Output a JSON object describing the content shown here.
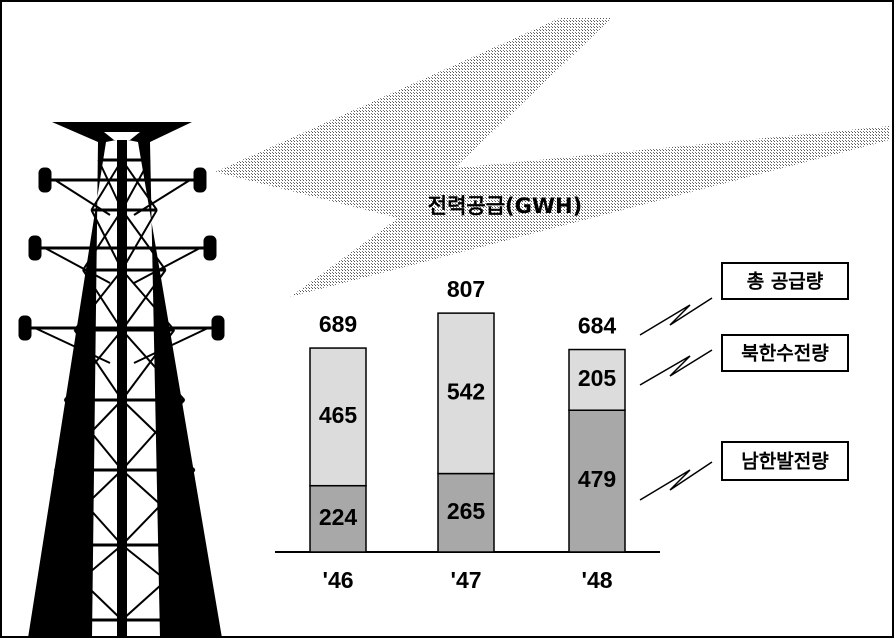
{
  "chart_data": {
    "type": "stacked_bar",
    "title": "전력공급(GWH)",
    "categories": [
      "'46",
      "'47",
      "'48"
    ],
    "series": [
      {
        "name": "남한발전량",
        "color": "#a8a8a8",
        "values": [
          224,
          265,
          479
        ]
      },
      {
        "name": "북한수전량",
        "color": "#dcdcdc",
        "values": [
          465,
          542,
          205
        ]
      }
    ],
    "total_label": "총 공급량",
    "totals": [
      689,
      807,
      684
    ]
  }
}
